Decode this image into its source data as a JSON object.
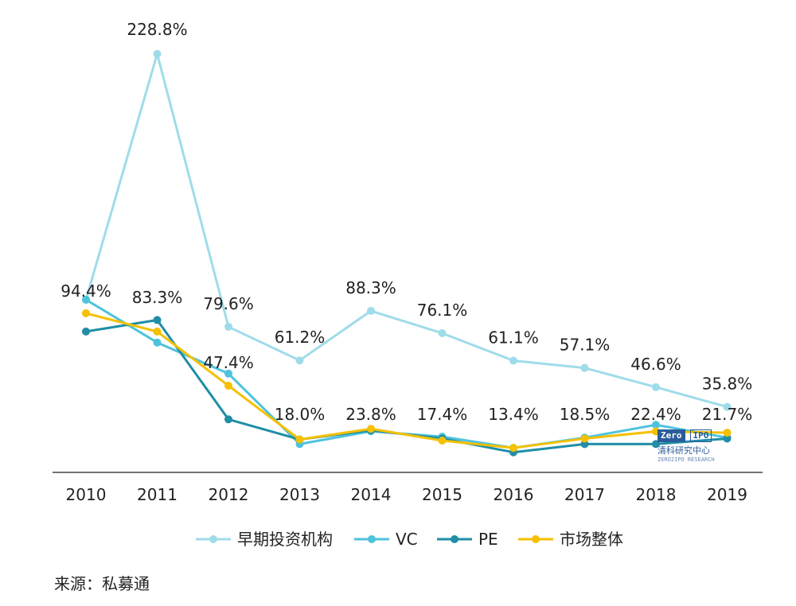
{
  "chart_data": {
    "type": "line",
    "x": [
      "2010",
      "2011",
      "2012",
      "2013",
      "2014",
      "2015",
      "2016",
      "2017",
      "2018",
      "2019"
    ],
    "ylim": [
      0,
      240
    ],
    "grid": false,
    "legend_position": "bottom",
    "data_labels": [
      "94.4%",
      "83.3%",
      "79.6%",
      "61.2%",
      "88.3%",
      "76.1%",
      "61.1%",
      "57.1%",
      "46.6%",
      "35.8%"
    ],
    "data_labels_2": [
      "",
      "",
      "47.4%",
      "18.0%",
      "23.8%",
      "17.4%",
      "13.4%",
      "18.5%",
      "22.4%",
      "21.7%"
    ],
    "top_label": "228.8%",
    "series": [
      {
        "name": "早期投资机构",
        "color": "#9fdcea",
        "values": [
          94.4,
          228.8,
          79.6,
          61.2,
          88.3,
          76.1,
          61.1,
          57.1,
          46.6,
          35.8
        ]
      },
      {
        "name": "VC",
        "color": "#4ec3dd",
        "values": [
          94.4,
          71.0,
          54.0,
          15.5,
          22.5,
          19.5,
          13.4,
          19.0,
          26.0,
          19.0
        ]
      },
      {
        "name": "PE",
        "color": "#1f8ea6",
        "values": [
          77.0,
          83.3,
          29.0,
          18.0,
          23.0,
          18.5,
          11.0,
          15.5,
          15.5,
          18.5
        ]
      },
      {
        "name": "市场整体",
        "color": "#f4c000",
        "values": [
          87.0,
          77.0,
          47.4,
          18.0,
          23.8,
          17.4,
          13.4,
          18.5,
          22.4,
          21.7
        ]
      }
    ]
  },
  "source_text": "来源：私募通",
  "watermark": {
    "box1": "Zero",
    "box2": "IPO",
    "text": "清科研究中心",
    "sub": "ZERO2IPO RESEARCH"
  }
}
